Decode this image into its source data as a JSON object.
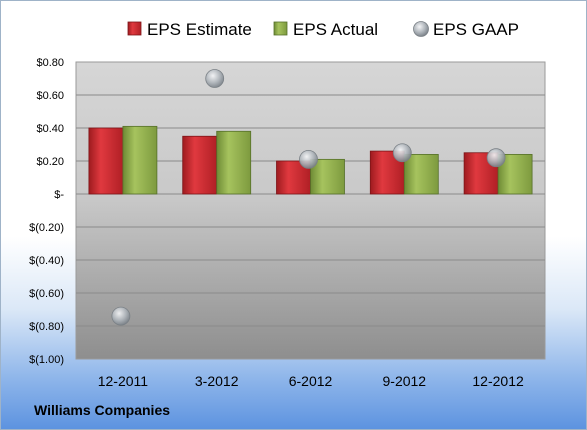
{
  "company": "Williams Companies",
  "colors": {
    "estimate": "#c8262c",
    "actual": "#8cab4a",
    "gaap": "#a9afb6"
  },
  "chart_data": {
    "type": "bar",
    "categories": [
      "12-2011",
      "3-2012",
      "6-2012",
      "9-2012",
      "12-2012"
    ],
    "series": [
      {
        "name": "EPS Estimate",
        "values": [
          0.4,
          0.35,
          0.2,
          0.26,
          0.25
        ]
      },
      {
        "name": "EPS Actual",
        "values": [
          0.41,
          0.38,
          0.21,
          0.24,
          0.24
        ]
      },
      {
        "name": "EPS GAAP",
        "type": "scatter",
        "values": [
          -0.74,
          0.7,
          0.21,
          0.25,
          0.22
        ]
      }
    ],
    "ylim": [
      -1.0,
      0.8
    ],
    "yticks": [
      0.8,
      0.6,
      0.4,
      0.2,
      0,
      -0.2,
      -0.4,
      -0.6,
      -0.8,
      -1.0
    ],
    "ytick_labels": [
      "$0.80",
      "$0.60",
      "$0.40",
      "$0.20",
      "$-",
      "$(0.20)",
      "$(0.40)",
      "$(0.60)",
      "$(0.80)",
      "$(1.00)"
    ],
    "legend_position": "top",
    "grid": true
  }
}
